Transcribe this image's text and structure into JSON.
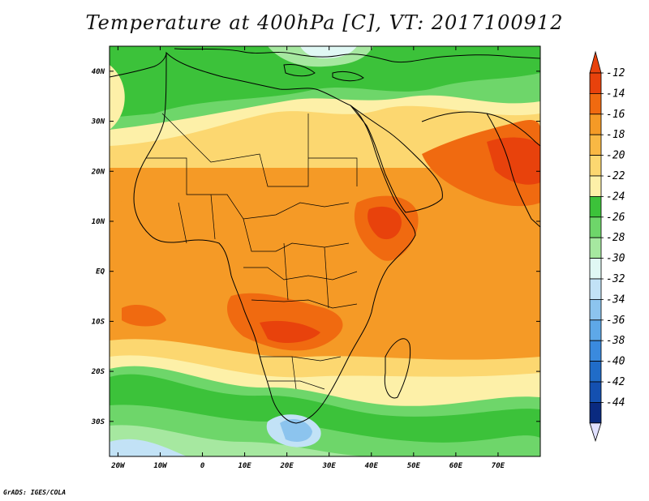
{
  "title": "Temperature at 400hPa [C], VT: 2017100912",
  "credit": "GrADS: IGES/COLA",
  "map": {
    "x_ticks": [
      "20W",
      "10W",
      "0",
      "10E",
      "20E",
      "30E",
      "40E",
      "50E",
      "60E",
      "70E"
    ],
    "y_ticks": [
      "40N",
      "30N",
      "20N",
      "10N",
      "EQ",
      "10S",
      "20S",
      "30S"
    ],
    "lon_range": [
      -22,
      80
    ],
    "lat_range": [
      -37,
      45
    ]
  },
  "colorbar": {
    "levels": [
      "-12",
      "-14",
      "-16",
      "-18",
      "-20",
      "-22",
      "-24",
      "-26",
      "-28",
      "-30",
      "-32",
      "-34",
      "-36",
      "-38",
      "-40",
      "-42",
      "-44"
    ],
    "colors": [
      "#e8420c",
      "#f06a10",
      "#f59a26",
      "#f9b844",
      "#fcd770",
      "#fdf0a8",
      "#3cc23a",
      "#6ed66a",
      "#a6e8a0",
      "#e0f8f4",
      "#c2e2f6",
      "#8cc4ee",
      "#5ea8e8",
      "#3a8ade",
      "#206cc8",
      "#1450b0",
      "#0a2a80"
    ],
    "top_color": "#e8420c",
    "bottom_color": "#e0e0ff"
  }
}
